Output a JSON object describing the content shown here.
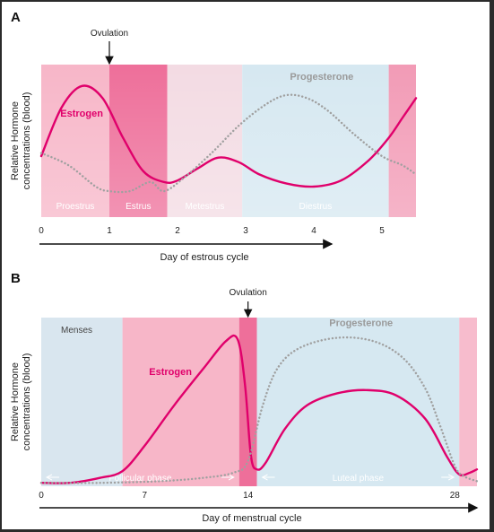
{
  "chart_data": [
    {
      "panel": "A",
      "type": "line",
      "ylabel": [
        "Relative Hormone",
        "concentrations (blood)"
      ],
      "xlabel": "Day of estrous cycle",
      "xlim": [
        0,
        5.5
      ],
      "ylim": [
        0,
        1
      ],
      "x_ticks": [
        0,
        1,
        2,
        3,
        4,
        5
      ],
      "event": {
        "label": "Ovulation",
        "x": 1.0
      },
      "phases": [
        {
          "name": "Proestrus",
          "start": 0,
          "end": 1.0,
          "color": "#f7b6c8"
        },
        {
          "name": "Estrus",
          "start": 1.0,
          "end": 1.85,
          "color": "#ee6f9a"
        },
        {
          "name": "Metestrus",
          "start": 1.85,
          "end": 2.95,
          "color": "#f3dbe3"
        },
        {
          "name": "Diestrus",
          "start": 2.95,
          "end": 5.1,
          "color": "#d6e8f1"
        },
        {
          "name": "",
          "start": 5.1,
          "end": 5.5,
          "color": "#f29bb6"
        }
      ],
      "series": [
        {
          "name": "Estrogen",
          "color": "#e0006b",
          "style": "solid",
          "x": [
            0,
            0.3,
            0.6,
            0.9,
            1.2,
            1.5,
            1.8,
            2.0,
            2.3,
            2.6,
            2.9,
            3.2,
            3.6,
            4.0,
            4.4,
            4.8,
            5.1,
            5.3,
            5.5
          ],
          "values": [
            0.4,
            0.72,
            0.86,
            0.78,
            0.52,
            0.3,
            0.23,
            0.24,
            0.32,
            0.39,
            0.36,
            0.28,
            0.22,
            0.2,
            0.24,
            0.37,
            0.52,
            0.65,
            0.78
          ]
        },
        {
          "name": "Progesterone",
          "color": "#a0a0a0",
          "style": "dotted",
          "x": [
            0,
            0.4,
            0.8,
            1.0,
            1.3,
            1.6,
            1.8,
            2.1,
            2.5,
            2.9,
            3.3,
            3.6,
            3.9,
            4.2,
            4.6,
            5.0,
            5.3,
            5.5
          ],
          "values": [
            0.42,
            0.34,
            0.2,
            0.17,
            0.17,
            0.23,
            0.17,
            0.26,
            0.42,
            0.6,
            0.74,
            0.8,
            0.78,
            0.7,
            0.54,
            0.4,
            0.34,
            0.28
          ]
        }
      ],
      "annotations": [
        {
          "text": "Estrogen",
          "series": "Estrogen",
          "x": 0.28,
          "y": 0.66
        },
        {
          "text": "Progesterone",
          "series": "Progesterone",
          "x": 3.65,
          "y": 0.9
        }
      ]
    },
    {
      "panel": "B",
      "type": "line",
      "ylabel": [
        "Relative Hormone",
        "concentrations (blood)"
      ],
      "xlabel": "Day of menstrual cycle",
      "xlim": [
        0,
        29.5
      ],
      "ylim": [
        0,
        1
      ],
      "x_ticks": [
        0,
        7,
        14,
        28
      ],
      "event": {
        "label": "Ovulation",
        "x": 14
      },
      "phases": [
        {
          "name": "Menses",
          "start": 0,
          "end": 5.5,
          "color": "#d9e6ef"
        },
        {
          "name": "",
          "start": 5.5,
          "end": 13.4,
          "color": "#f7b6c8"
        },
        {
          "name": "",
          "start": 13.4,
          "end": 14.6,
          "color": "#ee6f9a"
        },
        {
          "name": "",
          "start": 14.6,
          "end": 28.3,
          "color": "#d6e8f1"
        },
        {
          "name": "",
          "start": 28.3,
          "end": 29.5,
          "color": "#f7bccd"
        }
      ],
      "phase_arrows": [
        {
          "name": "Follicular phase",
          "start": 0,
          "end": 13.4
        },
        {
          "name": "Luteal phase",
          "start": 14.6,
          "end": 28.3
        }
      ],
      "series": [
        {
          "name": "Estrogen",
          "color": "#e0006b",
          "style": "solid",
          "x": [
            0,
            2,
            4,
            5.5,
            7,
            9,
            11,
            12.5,
            13.3,
            13.8,
            14.2,
            14.6,
            15.2,
            16.5,
            18,
            20,
            22,
            24,
            26,
            27.5,
            28.3,
            29,
            29.5
          ],
          "values": [
            0.02,
            0.02,
            0.05,
            0.09,
            0.24,
            0.48,
            0.7,
            0.86,
            0.87,
            0.6,
            0.18,
            0.1,
            0.14,
            0.34,
            0.48,
            0.55,
            0.57,
            0.54,
            0.4,
            0.17,
            0.07,
            0.08,
            0.1
          ]
        },
        {
          "name": "Progesterone",
          "color": "#a0a0a0",
          "style": "dotted",
          "x": [
            0,
            4,
            8,
            11,
            13,
            14,
            15,
            16,
            17.5,
            20,
            22.5,
            24.5,
            26,
            27,
            28,
            28.6,
            29.5
          ],
          "values": [
            0.02,
            0.02,
            0.03,
            0.05,
            0.08,
            0.15,
            0.48,
            0.7,
            0.82,
            0.88,
            0.86,
            0.76,
            0.58,
            0.36,
            0.12,
            0.06,
            0.03
          ]
        }
      ],
      "annotations": [
        {
          "text": "Estrogen",
          "series": "Estrogen",
          "x": 7.3,
          "y": 0.66
        },
        {
          "text": "Progesterone",
          "series": "Progesterone",
          "x": 19.5,
          "y": 0.95
        }
      ]
    }
  ]
}
